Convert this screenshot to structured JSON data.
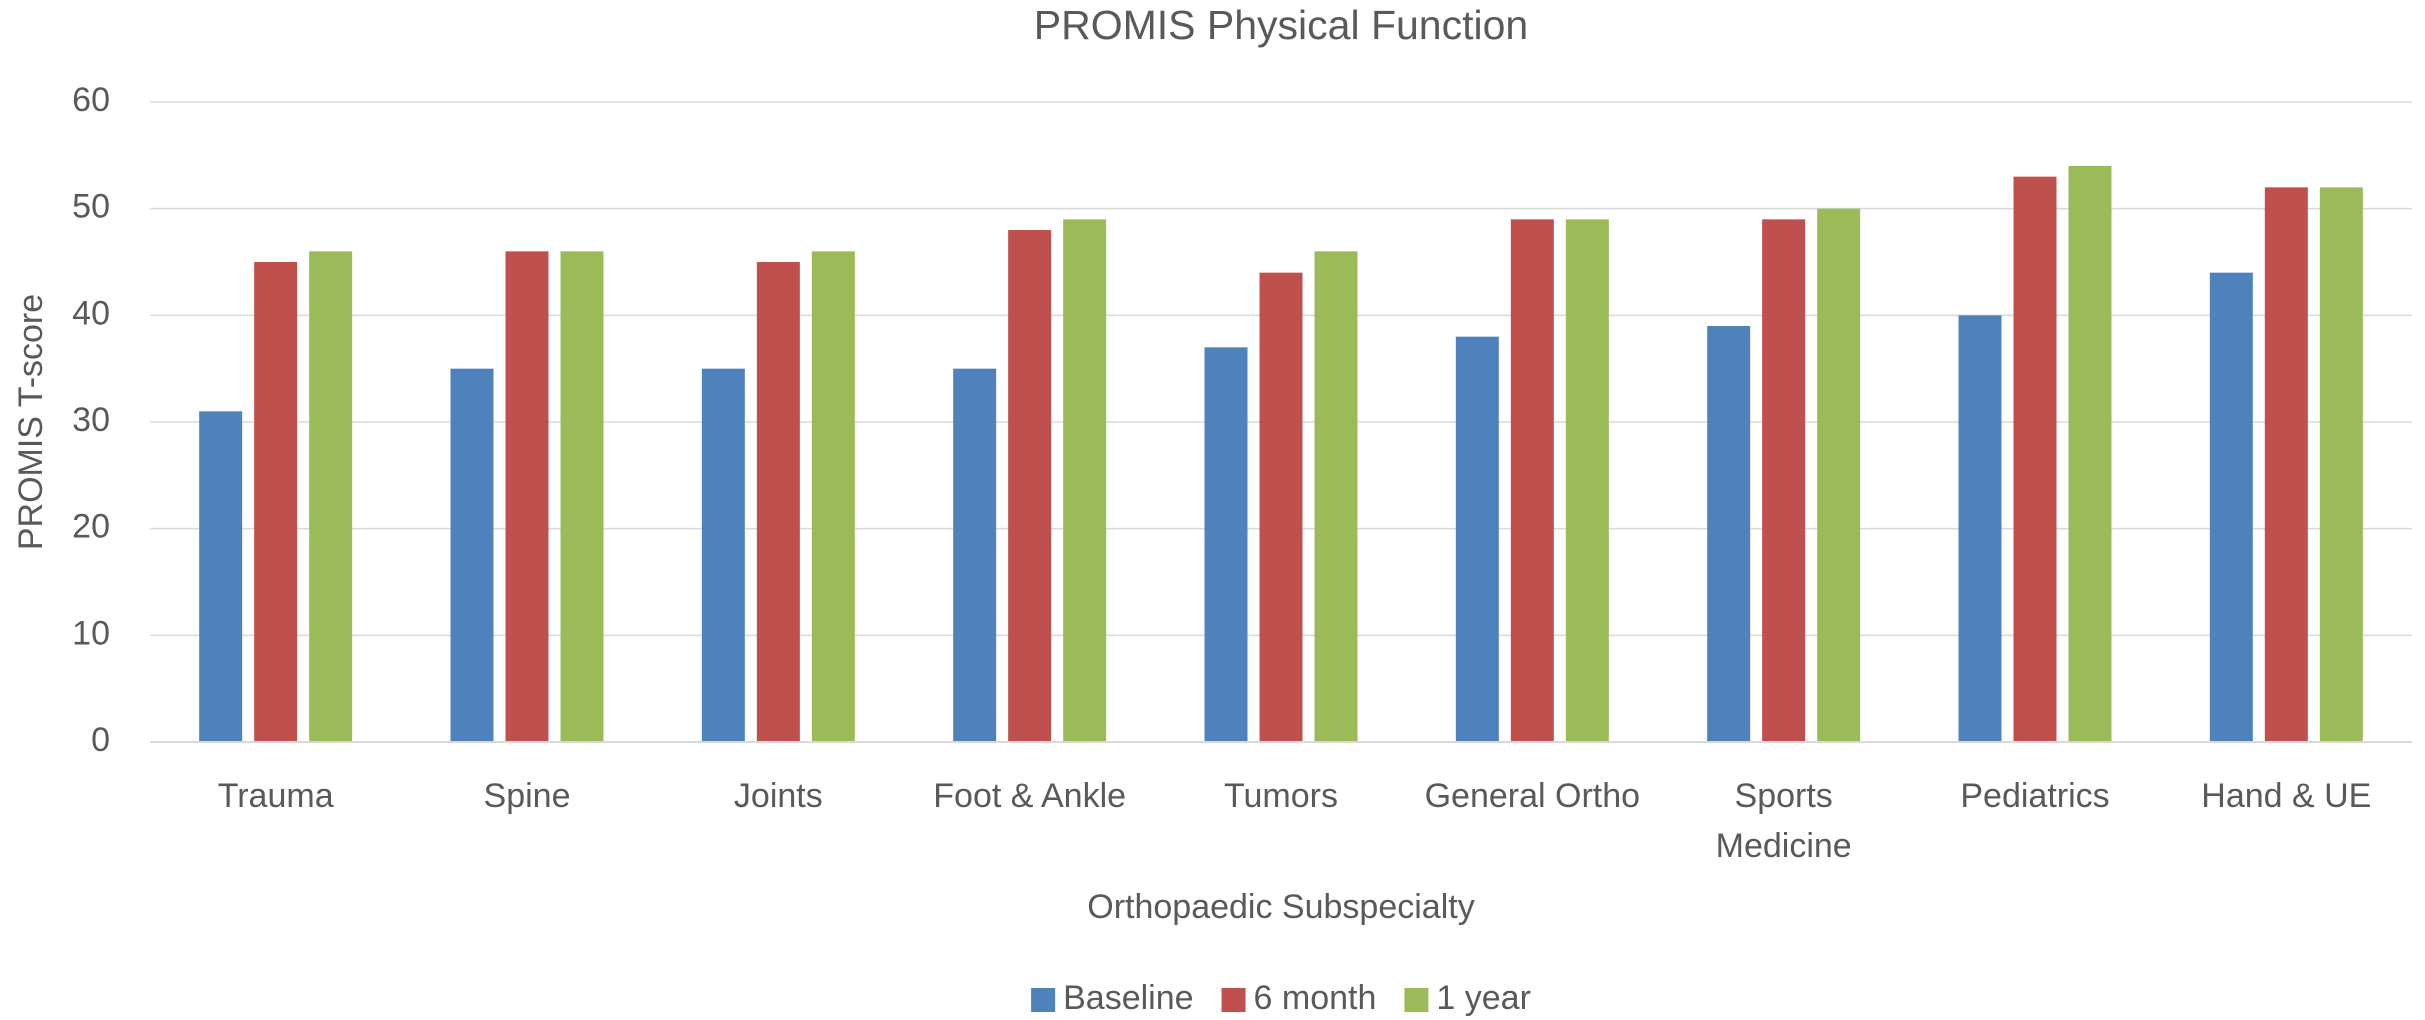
{
  "chart_data": {
    "type": "bar",
    "title": "PROMIS Physical Function",
    "x_label": "Orthopaedic Subspecialty",
    "y_label": "PROMIS T-score",
    "categories": [
      "Trauma",
      "Spine",
      "Joints",
      "Foot & Ankle",
      "Tumors",
      "General Ortho",
      "Sports Medicine",
      "Pediatrics",
      "Hand & UE"
    ],
    "series": [
      {
        "name": "Baseline",
        "color": "#4f81bd",
        "values": [
          31,
          35,
          35,
          35,
          37,
          38,
          39,
          40,
          44
        ]
      },
      {
        "name": "6 month",
        "color": "#c0504d",
        "values": [
          45,
          46,
          45,
          48,
          44,
          49,
          49,
          53,
          52
        ]
      },
      {
        "name": "1 year",
        "color": "#9bbb59",
        "values": [
          46,
          46,
          46,
          49,
          46,
          49,
          50,
          54,
          52
        ]
      }
    ],
    "ylim": [
      0,
      60
    ],
    "yticks": [
      0,
      10,
      20,
      30,
      40,
      50,
      60
    ],
    "grid": true,
    "legend": "bottom"
  }
}
